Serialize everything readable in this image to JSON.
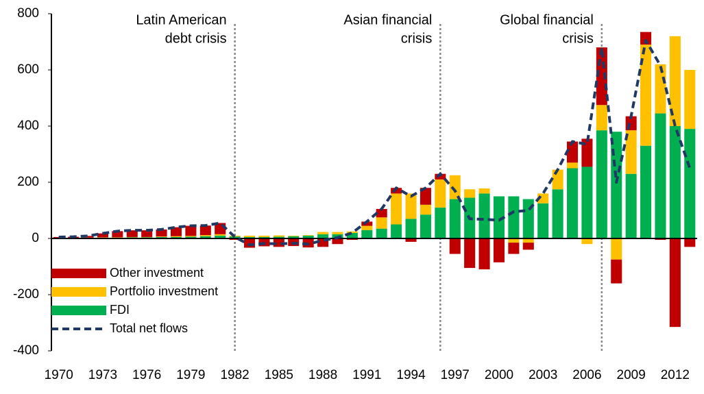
{
  "chart_data": {
    "type": "bar",
    "categories": [
      "1970",
      null,
      null,
      "1973",
      null,
      null,
      "1976",
      null,
      null,
      "1979",
      null,
      null,
      "1982",
      null,
      null,
      "1985",
      null,
      null,
      "1988",
      null,
      null,
      "1991",
      null,
      null,
      "1994",
      null,
      null,
      "1997",
      null,
      null,
      "2000",
      null,
      null,
      "2003",
      null,
      null,
      "2006",
      null,
      null,
      "2009",
      null,
      null,
      "2012",
      null
    ],
    "series": [
      {
        "name": "Other investment",
        "color": "#c00000",
        "type": "bar",
        "values": [
          3,
          4,
          6,
          14,
          22,
          24,
          24,
          25,
          32,
          36,
          34,
          40,
          -5,
          -33,
          -28,
          -30,
          -27,
          -32,
          -30,
          -20,
          -5,
          15,
          30,
          20,
          -12,
          60,
          20,
          -55,
          -105,
          -110,
          -85,
          -40,
          -25,
          0,
          0,
          75,
          100,
          205,
          -85,
          50,
          45,
          -5,
          -315,
          -30
        ]
      },
      {
        "name": "Portfolio investment",
        "color": "#ffc000",
        "type": "bar",
        "values": [
          0,
          0,
          1,
          1,
          1,
          1,
          1,
          2,
          3,
          3,
          4,
          5,
          3,
          5,
          5,
          5,
          2,
          2,
          8,
          8,
          5,
          15,
          40,
          110,
          90,
          35,
          100,
          85,
          30,
          18,
          0,
          -15,
          -15,
          35,
          70,
          20,
          -20,
          90,
          -75,
          155,
          360,
          175,
          320,
          210
        ]
      },
      {
        "name": "FDI",
        "color": "#00b050",
        "type": "bar",
        "values": [
          2,
          2,
          2,
          3,
          3,
          4,
          4,
          5,
          5,
          6,
          8,
          10,
          7,
          5,
          5,
          6,
          8,
          10,
          15,
          15,
          20,
          30,
          35,
          50,
          70,
          85,
          110,
          140,
          145,
          160,
          150,
          150,
          140,
          125,
          175,
          250,
          255,
          385,
          380,
          230,
          330,
          445,
          400,
          390
        ]
      },
      {
        "name": "Total net flows",
        "color": "#1f3864",
        "type": "line",
        "values": [
          5,
          6,
          9,
          18,
          26,
          29,
          29,
          32,
          40,
          45,
          46,
          55,
          5,
          -23,
          -18,
          -19,
          -17,
          -20,
          -7,
          3,
          20,
          60,
          105,
          180,
          150,
          180,
          230,
          170,
          70,
          68,
          65,
          95,
          100,
          160,
          245,
          345,
          335,
          680,
          200,
          435,
          705,
          615,
          400,
          250
        ]
      }
    ],
    "ylim": [
      -400,
      800
    ],
    "yticks": [
      -400,
      -200,
      0,
      200,
      400,
      600,
      800
    ],
    "grid": false,
    "legend": "lower left",
    "annotations": [
      {
        "text": [
          "Latin American",
          "debt crisis"
        ]
      },
      {
        "text": [
          "Asian financial",
          "crisis"
        ]
      },
      {
        "text": [
          "Global financial",
          "crisis"
        ]
      }
    ]
  }
}
